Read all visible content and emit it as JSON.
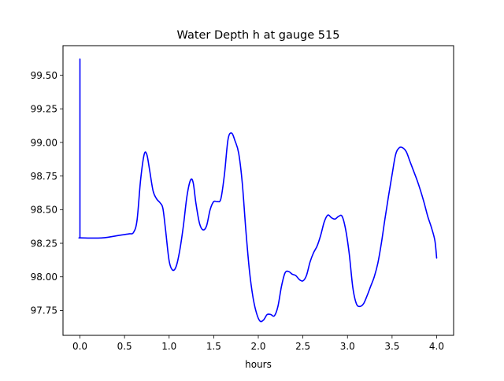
{
  "chart_data": {
    "type": "line",
    "title": "Water Depth h at gauge 515",
    "xlabel": "hours",
    "ylabel": "",
    "xlim": [
      -0.19,
      4.19
    ],
    "ylim": [
      97.565,
      99.72
    ],
    "x_ticks": [
      0.0,
      0.5,
      1.0,
      1.5,
      2.0,
      2.5,
      3.0,
      3.5,
      4.0
    ],
    "x_tick_labels": [
      "0.0",
      "0.5",
      "1.0",
      "1.5",
      "2.0",
      "2.5",
      "3.0",
      "3.5",
      "4.0"
    ],
    "y_ticks": [
      97.75,
      98.0,
      98.25,
      98.5,
      98.75,
      99.0,
      99.25,
      99.5
    ],
    "y_tick_labels": [
      "97.75",
      "98.00",
      "98.25",
      "98.50",
      "98.75",
      "99.00",
      "99.25",
      "99.50"
    ],
    "grid": false,
    "series": [
      {
        "color": "#0000ff",
        "x": [
          0.0,
          0.0,
          0.01,
          0.25,
          0.45,
          0.55,
          0.6,
          0.64,
          0.68,
          0.72,
          0.75,
          0.78,
          0.82,
          0.86,
          0.9,
          0.93,
          0.96,
          1.0,
          1.04,
          1.08,
          1.12,
          1.16,
          1.2,
          1.24,
          1.27,
          1.3,
          1.34,
          1.38,
          1.42,
          1.46,
          1.5,
          1.54,
          1.58,
          1.62,
          1.66,
          1.7,
          1.74,
          1.78,
          1.82,
          1.86,
          1.9,
          1.94,
          1.98,
          2.02,
          2.06,
          2.1,
          2.14,
          2.18,
          2.22,
          2.26,
          2.3,
          2.34,
          2.38,
          2.42,
          2.46,
          2.5,
          2.54,
          2.58,
          2.62,
          2.66,
          2.7,
          2.74,
          2.78,
          2.82,
          2.86,
          2.9,
          2.94,
          2.98,
          3.02,
          3.06,
          3.1,
          3.14,
          3.18,
          3.22,
          3.26,
          3.3,
          3.34,
          3.38,
          3.42,
          3.46,
          3.5,
          3.54,
          3.58,
          3.62,
          3.66,
          3.7,
          3.74,
          3.78,
          3.82,
          3.86,
          3.9,
          3.94,
          3.98,
          4.0
        ],
        "y": [
          99.62,
          98.29,
          98.29,
          98.29,
          98.31,
          98.32,
          98.33,
          98.42,
          98.72,
          98.91,
          98.91,
          98.8,
          98.64,
          98.58,
          98.55,
          98.51,
          98.35,
          98.12,
          98.05,
          98.08,
          98.2,
          98.38,
          98.6,
          98.72,
          98.7,
          98.55,
          98.4,
          98.35,
          98.38,
          98.5,
          98.56,
          98.56,
          98.58,
          98.76,
          99.02,
          99.07,
          99.01,
          98.92,
          98.7,
          98.35,
          98.05,
          97.85,
          97.73,
          97.67,
          97.68,
          97.72,
          97.72,
          97.71,
          97.78,
          97.93,
          98.03,
          98.04,
          98.02,
          98.01,
          97.98,
          97.97,
          98.01,
          98.11,
          98.18,
          98.23,
          98.31,
          98.41,
          98.46,
          98.44,
          98.43,
          98.45,
          98.45,
          98.35,
          98.17,
          97.92,
          97.8,
          97.78,
          97.8,
          97.86,
          97.93,
          98.0,
          98.1,
          98.25,
          98.43,
          98.6,
          98.76,
          98.91,
          98.96,
          98.96,
          98.93,
          98.86,
          98.79,
          98.72,
          98.64,
          98.55,
          98.45,
          98.37,
          98.27,
          98.14
        ]
      }
    ]
  }
}
